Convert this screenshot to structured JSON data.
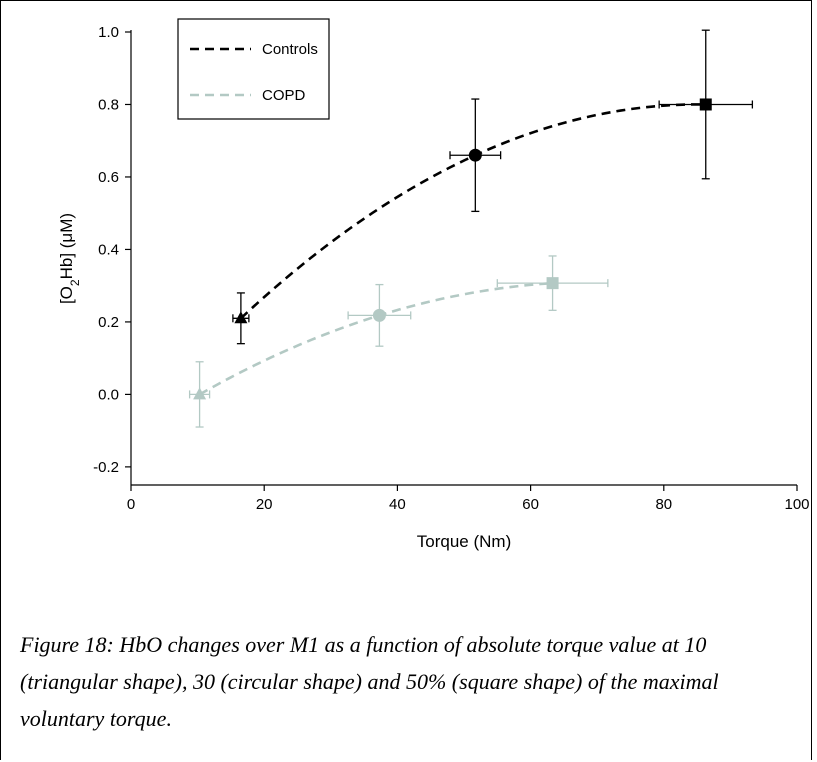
{
  "chart_data": {
    "type": "line",
    "xlabel": "Torque (Nm)",
    "ylabel_parts": [
      "[O",
      "2",
      "Hb] (μM)"
    ],
    "xlim": [
      0,
      100
    ],
    "ylim": [
      -0.25,
      1.0
    ],
    "x_ticks": [
      0,
      20,
      40,
      60,
      80,
      100
    ],
    "y_ticks": [
      -0.2,
      0.0,
      0.2,
      0.4,
      0.6,
      0.8,
      1.0
    ],
    "y_tick_labels": [
      "-0.2",
      "0.0",
      "0.2",
      "0.4",
      "0.6",
      "0.8",
      "1.0"
    ],
    "grid": false,
    "legend_position": "top-left",
    "series": [
      {
        "name": "Controls",
        "color": "#000000",
        "line_style": "dashed",
        "points": [
          {
            "x": 16.5,
            "y": 0.21,
            "x_err": 1.2,
            "y_err": 0.07,
            "marker": "triangle"
          },
          {
            "x": 51.7,
            "y": 0.66,
            "x_err": 3.8,
            "y_err": 0.155,
            "marker": "circle"
          },
          {
            "x": 86.3,
            "y": 0.8,
            "x_err": 7.0,
            "y_err": 0.205,
            "marker": "square"
          }
        ]
      },
      {
        "name": "COPD",
        "color": "#b3c9c4",
        "line_style": "dashed",
        "points": [
          {
            "x": 10.3,
            "y": 0.0,
            "x_err": 1.5,
            "y_err": 0.09,
            "marker": "triangle"
          },
          {
            "x": 37.3,
            "y": 0.218,
            "x_err": 4.7,
            "y_err": 0.085,
            "marker": "circle"
          },
          {
            "x": 63.3,
            "y": 0.307,
            "x_err": 8.3,
            "y_err": 0.075,
            "marker": "square"
          }
        ]
      }
    ]
  },
  "caption": "Figure 18: HbO changes over M1 as a function of absolute torque value at 10 (triangular shape), 30 (circular shape) and 50% (square shape) of the maximal voluntary torque."
}
